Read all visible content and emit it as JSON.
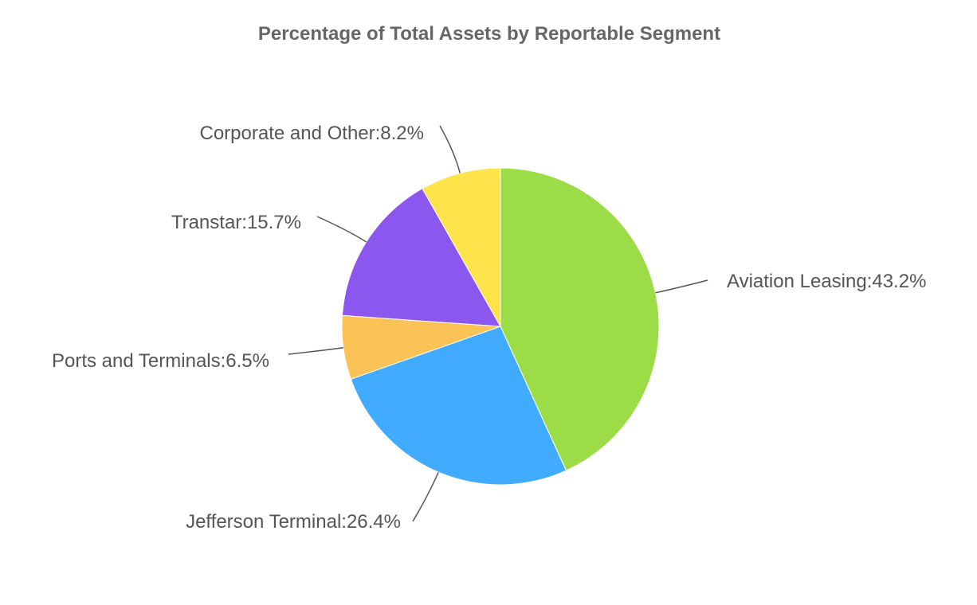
{
  "chart_data": {
    "type": "pie",
    "title": "Percentage of Total Assets by Reportable Segment",
    "label_separator": ":",
    "value_suffix": "%",
    "slices": [
      {
        "name": "Aviation Leasing",
        "value": 43.2,
        "color": "#9cdc47"
      },
      {
        "name": "Jefferson Terminal",
        "value": 26.4,
        "color": "#41acff"
      },
      {
        "name": "Ports and Terminals",
        "value": 6.5,
        "color": "#fbc356"
      },
      {
        "name": "Transtar",
        "value": 15.7,
        "color": "#8c57ef"
      },
      {
        "name": "Corporate and Other",
        "value": 8.2,
        "color": "#ffe34a"
      }
    ]
  }
}
